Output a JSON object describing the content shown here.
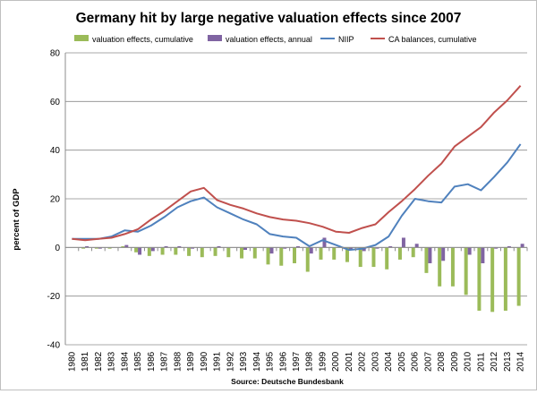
{
  "chart_data": {
    "type": "bar",
    "title": "Germany hit by large negative valuation effects since 2007",
    "ylabel": "percent of GDP",
    "xlabel": "",
    "source": "Source: Deutsche Bundesbank",
    "ylim": [
      -40,
      80
    ],
    "yticks": [
      -40,
      -20,
      0,
      20,
      40,
      60,
      80
    ],
    "grid": "horizontal",
    "legend_position": "top",
    "categories": [
      "1980",
      "1981",
      "1982",
      "1983",
      "1984",
      "1985",
      "1986",
      "1987",
      "1988",
      "1989",
      "1990",
      "1991",
      "1992",
      "1993",
      "1994",
      "1995",
      "1996",
      "1997",
      "1998",
      "1999",
      "2000",
      "2001",
      "2002",
      "2003",
      "2004",
      "2005",
      "2006",
      "2007",
      "2008",
      "2009",
      "2010",
      "2011",
      "2012",
      "2013",
      "2014"
    ],
    "series": [
      {
        "name": "valuation effects, cumulative",
        "kind": "bar",
        "color": "#9bbb59",
        "values": [
          0,
          -0.5,
          -0.5,
          -0.5,
          0.5,
          -2,
          -3.5,
          -3,
          -3,
          -3.5,
          -4,
          -3.5,
          -4,
          -4.5,
          -4.5,
          -7,
          -7.5,
          -6.5,
          -10,
          -5,
          -5,
          -6,
          -8,
          -8,
          -9,
          -5,
          -4,
          -10.5,
          -16,
          -16,
          -19.5,
          -26,
          -26.5,
          -26,
          -24
        ]
      },
      {
        "name": "valuation effects, annual",
        "kind": "bar",
        "color": "#8064a2",
        "values": [
          0,
          0.5,
          -0.5,
          0,
          1,
          -3,
          -1.5,
          0.5,
          0.5,
          -0.5,
          0,
          0.5,
          0,
          -1,
          0,
          -2.5,
          -0.5,
          0.5,
          -2.5,
          4,
          0,
          -1,
          -1.5,
          -0.5,
          0.5,
          4,
          1.5,
          -6.5,
          -5.5,
          0,
          -3,
          -6.5,
          -0.5,
          0.5,
          1.5
        ]
      },
      {
        "name": "NIIP",
        "kind": "line",
        "color": "#4f81bd",
        "values": [
          3.5,
          3.5,
          3.5,
          4.5,
          7,
          6.5,
          9,
          12.5,
          16.5,
          19,
          20.5,
          16.5,
          14,
          11.5,
          9.5,
          5.5,
          4.5,
          4,
          0.5,
          3,
          1,
          -1,
          -0.5,
          1,
          4.5,
          13,
          20,
          19,
          18.5,
          25,
          26,
          23.5,
          29,
          35,
          42.5
        ]
      },
      {
        "name": "CA balances, cumulative",
        "kind": "line",
        "color": "#c0504d",
        "values": [
          3.5,
          3,
          3.5,
          4,
          5.5,
          7.5,
          11.5,
          15,
          19,
          23,
          24.5,
          19.5,
          17.5,
          16,
          14,
          12.5,
          11.5,
          11,
          10,
          8.5,
          6.5,
          6,
          8,
          9.5,
          14.5,
          19,
          24,
          29.5,
          34.5,
          41.5,
          45.5,
          49.5,
          55.5,
          60.5,
          66.5
        ]
      }
    ]
  }
}
